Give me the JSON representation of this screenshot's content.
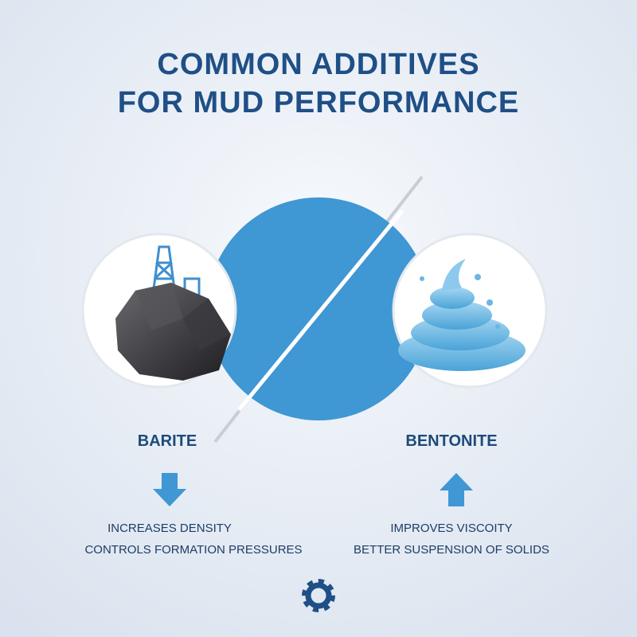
{
  "header": {
    "title_lines": [
      "COMMON ADDITIVES",
      "FOR MUD PERFORMANCE"
    ]
  },
  "items": [
    {
      "name": "BARITE",
      "effects": [
        "INCREASES DENSITY",
        "CONTROLS FORMATION PRESSURES"
      ]
    },
    {
      "name": "BENTONITE",
      "effects": [
        "IMPROVES VISCOITY",
        "BETTER SUSPENSION OF SOLIDS"
      ]
    }
  ]
}
